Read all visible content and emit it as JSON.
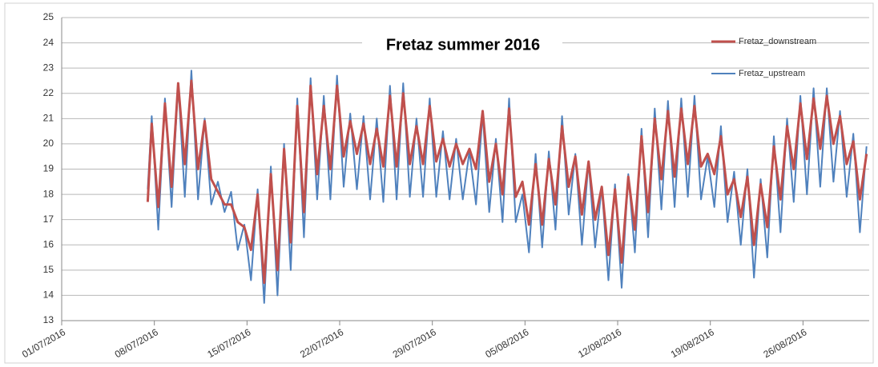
{
  "chart_data": {
    "type": "line",
    "title": "Fretaz   summer 2016",
    "x": [
      42558.5,
      42558.8,
      42559.3,
      42559.8,
      42560.3,
      42560.8,
      42561.3,
      42561.8,
      42562.3,
      42562.8,
      42563.3,
      42563.8,
      42564.3,
      42564.8,
      42565.3,
      42565.8,
      42566.3,
      42566.8,
      42567.3,
      42567.8,
      42568.3,
      42568.8,
      42569.3,
      42569.8,
      42570.3,
      42570.8,
      42571.3,
      42571.8,
      42572.3,
      42572.8,
      42573.3,
      42573.8,
      42574.3,
      42574.8,
      42575.3,
      42575.8,
      42576.3,
      42576.8,
      42577.3,
      42577.8,
      42578.3,
      42578.8,
      42579.3,
      42579.8,
      42580.3,
      42580.8,
      42581.3,
      42581.8,
      42582.3,
      42582.8,
      42583.3,
      42583.8,
      42584.3,
      42584.8,
      42585.3,
      42585.8,
      42586.3,
      42586.8,
      42587.3,
      42587.8,
      42588.3,
      42588.8,
      42589.3,
      42589.8,
      42590.3,
      42590.8,
      42591.3,
      42591.8,
      42592.3,
      42592.8,
      42593.3,
      42593.8,
      42594.3,
      42594.8,
      42595.3,
      42595.8,
      42596.3,
      42596.8,
      42597.3,
      42597.8,
      42598.3,
      42598.8,
      42599.3,
      42599.8,
      42600.3,
      42600.8,
      42601.3,
      42601.8,
      42602.3,
      42602.8,
      42603.3,
      42603.8,
      42604.3,
      42604.8,
      42605.3,
      42605.8,
      42606.3,
      42606.8,
      42607.3,
      42607.8,
      42608.3,
      42608.8,
      42609.3,
      42609.8,
      42610.3,
      42610.8,
      42611.3,
      42611.8,
      42612.3,
      42612.8
    ],
    "series": [
      {
        "name": "Fretaz_downstream",
        "color": "#c0504d",
        "values": [
          17.7,
          20.8,
          17.5,
          21.6,
          18.3,
          22.4,
          19.2,
          22.5,
          19.0,
          20.9,
          18.6,
          18.1,
          17.6,
          17.6,
          16.9,
          16.7,
          15.8,
          18.0,
          14.5,
          18.8,
          15.0,
          19.8,
          16.1,
          21.5,
          17.3,
          22.3,
          18.8,
          21.5,
          19.0,
          22.3,
          19.5,
          20.9,
          19.6,
          20.8,
          19.2,
          20.6,
          19.1,
          21.9,
          19.1,
          22.0,
          19.2,
          20.7,
          19.2,
          21.5,
          19.3,
          20.2,
          19.1,
          20.0,
          19.2,
          19.8,
          19.0,
          21.3,
          18.5,
          20.0,
          18.0,
          21.4,
          17.9,
          18.5,
          16.8,
          19.2,
          16.8,
          19.4,
          17.6,
          20.7,
          18.3,
          19.5,
          17.2,
          19.3,
          17.0,
          18.3,
          15.6,
          18.2,
          15.3,
          18.7,
          16.6,
          20.3,
          17.3,
          21.0,
          18.6,
          21.3,
          18.7,
          21.4,
          19.2,
          21.5,
          19.1,
          19.6,
          18.8,
          20.3,
          18.0,
          18.6,
          17.1,
          18.7,
          16.0,
          18.4,
          16.7,
          19.9,
          17.8,
          20.7,
          19.0,
          21.6,
          19.4,
          21.8,
          19.8,
          21.9,
          20.0,
          21.1,
          19.2,
          20.1,
          17.8,
          19.6
        ]
      },
      {
        "name": "Fretaz_upstream",
        "color": "#4f81bd",
        "values": [
          18.2,
          21.1,
          16.6,
          21.8,
          17.5,
          22.4,
          17.9,
          22.9,
          17.8,
          21.0,
          17.6,
          18.5,
          17.3,
          18.1,
          15.8,
          16.8,
          14.6,
          18.2,
          13.7,
          19.1,
          14.0,
          20.0,
          15.0,
          21.8,
          16.3,
          22.6,
          17.8,
          21.9,
          17.8,
          22.7,
          18.3,
          21.2,
          18.2,
          21.1,
          17.8,
          21.0,
          17.7,
          22.3,
          17.8,
          22.4,
          17.9,
          21.0,
          17.9,
          21.8,
          17.9,
          20.5,
          17.8,
          20.2,
          17.8,
          19.7,
          17.6,
          21.2,
          17.3,
          20.2,
          16.9,
          21.8,
          16.9,
          18.0,
          15.7,
          19.6,
          15.9,
          19.7,
          16.6,
          21.1,
          17.2,
          19.6,
          16.0,
          19.3,
          15.9,
          18.3,
          14.6,
          18.4,
          14.3,
          18.8,
          15.7,
          20.6,
          16.3,
          21.4,
          17.4,
          21.7,
          17.5,
          21.8,
          17.9,
          21.9,
          17.8,
          19.5,
          17.5,
          20.7,
          16.9,
          18.9,
          16.0,
          19.0,
          14.7,
          18.6,
          15.5,
          20.3,
          16.5,
          21.0,
          17.7,
          21.9,
          18.0,
          22.2,
          18.3,
          22.2,
          18.5,
          21.3,
          17.9,
          20.4,
          16.5,
          19.9
        ]
      }
    ],
    "xlim": [
      42552,
      42613
    ],
    "xticks": [
      {
        "value": 42552,
        "label": "01/07/2016"
      },
      {
        "value": 42559,
        "label": "08/07/2016"
      },
      {
        "value": 42566,
        "label": "15/07/2016"
      },
      {
        "value": 42573,
        "label": "22/07/2016"
      },
      {
        "value": 42580,
        "label": "29/07/2016"
      },
      {
        "value": 42587,
        "label": "05/08/2016"
      },
      {
        "value": 42594,
        "label": "12/08/2016"
      },
      {
        "value": 42601,
        "label": "19/08/2016"
      },
      {
        "value": 42608,
        "label": "26/08/2016"
      }
    ],
    "ylim": [
      13,
      25
    ],
    "yticks": [
      13,
      14,
      15,
      16,
      17,
      18,
      19,
      20,
      21,
      22,
      23,
      24,
      25
    ],
    "grid": true
  }
}
